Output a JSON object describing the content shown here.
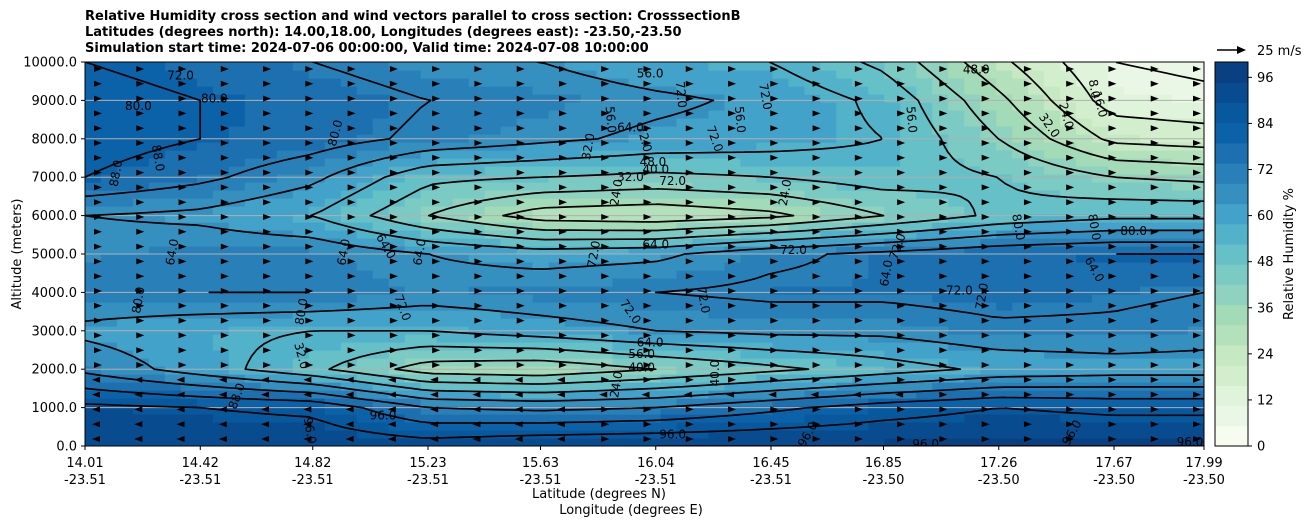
{
  "chart_data": {
    "type": "heatmap",
    "title_lines": [
      "Relative Humidity cross section and wind vectors parallel to cross section: CrosssectionB",
      "Latitudes (degrees north): 14.00,18.00, Longitudes (degrees east): -23.50,-23.50",
      "Simulation start time: 2024-07-06 00:00:00, Valid time: 2024-07-08 10:00:00"
    ],
    "xlabel_lat": "Latitude (degrees N)",
    "xlabel_lon": "Longitude (degrees E)",
    "ylabel": "Altitude (meters)",
    "x_range": [
      14.01,
      17.99
    ],
    "ylim": [
      0,
      10000
    ],
    "x_ticks": [
      {
        "lat": "14.01",
        "lon": "-23.51",
        "value": 14.01
      },
      {
        "lat": "14.42",
        "lon": "-23.51",
        "value": 14.42
      },
      {
        "lat": "14.82",
        "lon": "-23.51",
        "value": 14.82
      },
      {
        "lat": "15.23",
        "lon": "-23.51",
        "value": 15.23
      },
      {
        "lat": "15.63",
        "lon": "-23.51",
        "value": 15.63
      },
      {
        "lat": "16.04",
        "lon": "-23.51",
        "value": 16.04
      },
      {
        "lat": "16.45",
        "lon": "-23.51",
        "value": 16.45
      },
      {
        "lat": "16.85",
        "lon": "-23.50",
        "value": 16.85
      },
      {
        "lat": "17.26",
        "lon": "-23.50",
        "value": 17.26
      },
      {
        "lat": "17.67",
        "lon": "-23.50",
        "value": 17.67
      },
      {
        "lat": "17.99",
        "lon": "-23.50",
        "value": 17.99
      }
    ],
    "y_ticks": [
      "0.0",
      "1000.0",
      "2000.0",
      "3000.0",
      "4000.0",
      "5000.0",
      "6000.0",
      "7000.0",
      "8000.0",
      "9000.0",
      "10000.0"
    ],
    "colorbar": {
      "label": "Relative Humidity %",
      "ticks": [
        "0",
        "12",
        "24",
        "36",
        "48",
        "60",
        "72",
        "84",
        "96"
      ],
      "range": [
        0,
        100
      ],
      "colors": [
        "#f7fcf0",
        "#ebf7e6",
        "#e0f3db",
        "#d3eecd",
        "#c6e9c3",
        "#b3e1bb",
        "#a3dbb8",
        "#8fd2bf",
        "#7bcac4",
        "#66c0c8",
        "#52b2ca",
        "#43a2ca",
        "#3590c0",
        "#2980b9",
        "#1c70b0",
        "#0c62a8",
        "#08589e",
        "#084c8f",
        "#084081"
      ]
    },
    "contour_levels": [
      8.0,
      16.0,
      24.0,
      32.0,
      40.0,
      48.0,
      56.0,
      64.0,
      72.0,
      80.0,
      88.0,
      96.0
    ],
    "wind_reference": {
      "label": "25 m/s",
      "speed": 25
    },
    "rh_profiles": [
      {
        "lat": 14.01,
        "rh": [
          92,
          90,
          70,
          62,
          70,
          68,
          64,
          80,
          84,
          82,
          80
        ]
      },
      {
        "lat": 14.42,
        "rh": [
          94,
          88,
          60,
          58,
          72,
          70,
          62,
          74,
          80,
          80,
          78
        ]
      },
      {
        "lat": 14.82,
        "rh": [
          94,
          86,
          50,
          56,
          72,
          70,
          56,
          66,
          76,
          78,
          72
        ]
      },
      {
        "lat": 15.23,
        "rh": [
          92,
          72,
          36,
          56,
          68,
          64,
          40,
          50,
          70,
          72,
          66
        ]
      },
      {
        "lat": 15.63,
        "rh": [
          95,
          70,
          34,
          60,
          70,
          60,
          28,
          48,
          66,
          70,
          64
        ]
      },
      {
        "lat": 16.04,
        "rh": [
          96,
          72,
          40,
          64,
          72,
          62,
          26,
          46,
          62,
          66,
          58
        ]
      },
      {
        "lat": 16.45,
        "rh": [
          96,
          78,
          46,
          66,
          74,
          70,
          30,
          48,
          60,
          62,
          56
        ]
      },
      {
        "lat": 16.85,
        "rh": [
          96,
          84,
          52,
          66,
          74,
          74,
          40,
          52,
          56,
          54,
          46
        ]
      },
      {
        "lat": 17.26,
        "rh": [
          96,
          88,
          58,
          70,
          76,
          78,
          50,
          48,
          40,
          34,
          26
        ]
      },
      {
        "lat": 17.67,
        "rh": [
          96,
          86,
          60,
          70,
          74,
          80,
          54,
          40,
          22,
          12,
          8
        ]
      },
      {
        "lat": 17.99,
        "rh": [
          96,
          86,
          60,
          68,
          72,
          80,
          54,
          38,
          20,
          10,
          6
        ]
      }
    ],
    "contour_labels": [
      {
        "text": "88.0",
        "x": 14.12,
        "y": 7100,
        "rot": -80
      },
      {
        "text": "88.0",
        "x": 14.27,
        "y": 7500,
        "rot": 80
      },
      {
        "text": "80.0",
        "x": 14.2,
        "y": 8850,
        "rot": 0
      },
      {
        "text": "80.0",
        "x": 14.47,
        "y": 9050,
        "rot": 0
      },
      {
        "text": "72.0",
        "x": 14.35,
        "y": 9650,
        "rot": 0
      },
      {
        "text": "64.0",
        "x": 14.32,
        "y": 5050,
        "rot": -80
      },
      {
        "text": "80.0",
        "x": 14.2,
        "y": 3800,
        "rot": -80
      },
      {
        "text": "80.0",
        "x": 14.9,
        "y": 8150,
        "rot": -75
      },
      {
        "text": "80.0",
        "x": 14.78,
        "y": 3500,
        "rot": -80
      },
      {
        "text": "32.0",
        "x": 14.78,
        "y": 2350,
        "rot": 75
      },
      {
        "text": "64.0",
        "x": 14.93,
        "y": 5050,
        "rot": -80
      },
      {
        "text": "64.0",
        "x": 15.08,
        "y": 5200,
        "rot": 60
      },
      {
        "text": "64.0",
        "x": 15.2,
        "y": 5050,
        "rot": -80
      },
      {
        "text": "72.0",
        "x": 15.14,
        "y": 3600,
        "rot": 70
      },
      {
        "text": "96.0",
        "x": 15.07,
        "y": 800,
        "rot": 0
      },
      {
        "text": "96.0",
        "x": 14.81,
        "y": 400,
        "rot": 80
      },
      {
        "text": "88.0",
        "x": 14.55,
        "y": 1300,
        "rot": -70
      },
      {
        "text": "32.0",
        "x": 15.8,
        "y": 7800,
        "rot": -80
      },
      {
        "text": "56.0",
        "x": 15.88,
        "y": 8500,
        "rot": 85
      },
      {
        "text": "64.0",
        "x": 15.95,
        "y": 8300,
        "rot": 0
      },
      {
        "text": "72.0",
        "x": 16.0,
        "y": 8000,
        "rot": 75
      },
      {
        "text": "48.0",
        "x": 16.03,
        "y": 7400,
        "rot": 0
      },
      {
        "text": "40.0",
        "x": 16.04,
        "y": 7200,
        "rot": 0
      },
      {
        "text": "32.0",
        "x": 15.95,
        "y": 7000,
        "rot": 0
      },
      {
        "text": "72.0",
        "x": 16.1,
        "y": 6900,
        "rot": 0
      },
      {
        "text": "24.0",
        "x": 15.9,
        "y": 6600,
        "rot": -80
      },
      {
        "text": "72.0",
        "x": 16.13,
        "y": 9150,
        "rot": 85
      },
      {
        "text": "56.0",
        "x": 16.02,
        "y": 9700,
        "rot": 0
      },
      {
        "text": "72.0",
        "x": 16.25,
        "y": 8000,
        "rot": 70
      },
      {
        "text": "56.0",
        "x": 16.34,
        "y": 8500,
        "rot": 85
      },
      {
        "text": "72.0",
        "x": 16.43,
        "y": 9100,
        "rot": 80
      },
      {
        "text": "24.0",
        "x": 16.5,
        "y": 6600,
        "rot": -80
      },
      {
        "text": "64.0",
        "x": 16.04,
        "y": 5250,
        "rot": 0
      },
      {
        "text": "72.0",
        "x": 15.82,
        "y": 5000,
        "rot": -80
      },
      {
        "text": "72.0",
        "x": 15.95,
        "y": 3500,
        "rot": 55
      },
      {
        "text": "72.0",
        "x": 16.21,
        "y": 3800,
        "rot": 80
      },
      {
        "text": "72.0",
        "x": 16.53,
        "y": 5100,
        "rot": 0
      },
      {
        "text": "64.0",
        "x": 16.86,
        "y": 4500,
        "rot": -80
      },
      {
        "text": "72.0",
        "x": 16.9,
        "y": 5200,
        "rot": -70
      },
      {
        "text": "56.0",
        "x": 16.95,
        "y": 8500,
        "rot": 85
      },
      {
        "text": "48.0",
        "x": 17.18,
        "y": 9800,
        "rot": 0
      },
      {
        "text": "72.0",
        "x": 17.12,
        "y": 4050,
        "rot": 0
      },
      {
        "text": "72.0",
        "x": 17.2,
        "y": 3900,
        "rot": -80
      },
      {
        "text": "80.0",
        "x": 17.33,
        "y": 5700,
        "rot": 80
      },
      {
        "text": "80.0",
        "x": 17.6,
        "y": 5700,
        "rot": 80
      },
      {
        "text": "80.0",
        "x": 17.74,
        "y": 5600,
        "rot": 0
      },
      {
        "text": "64.0",
        "x": 17.6,
        "y": 4600,
        "rot": 60
      },
      {
        "text": "32.0",
        "x": 17.44,
        "y": 8350,
        "rot": 55
      },
      {
        "text": "24.0",
        "x": 17.5,
        "y": 8600,
        "rot": 75
      },
      {
        "text": "16.0",
        "x": 17.62,
        "y": 8900,
        "rot": 75
      },
      {
        "text": "8.0",
        "x": 17.6,
        "y": 9300,
        "rot": 80
      },
      {
        "text": "96.0",
        "x": 16.1,
        "y": 300,
        "rot": 0
      },
      {
        "text": "96.0",
        "x": 16.58,
        "y": 300,
        "rot": -60
      },
      {
        "text": "96.0",
        "x": 17.0,
        "y": 50,
        "rot": 0
      },
      {
        "text": "96.0",
        "x": 17.52,
        "y": 350,
        "rot": -60
      },
      {
        "text": "96.0",
        "x": 17.94,
        "y": 100,
        "rot": 0
      },
      {
        "text": "64.0",
        "x": 16.02,
        "y": 2700,
        "rot": 0
      },
      {
        "text": "56.0",
        "x": 15.99,
        "y": 2400,
        "rot": 0
      },
      {
        "text": "40.0",
        "x": 15.99,
        "y": 2050,
        "rot": 0
      },
      {
        "text": "24.0",
        "x": 15.9,
        "y": 1600,
        "rot": -80
      },
      {
        "text": "40.0",
        "x": 16.25,
        "y": 1900,
        "rot": -90
      }
    ]
  }
}
